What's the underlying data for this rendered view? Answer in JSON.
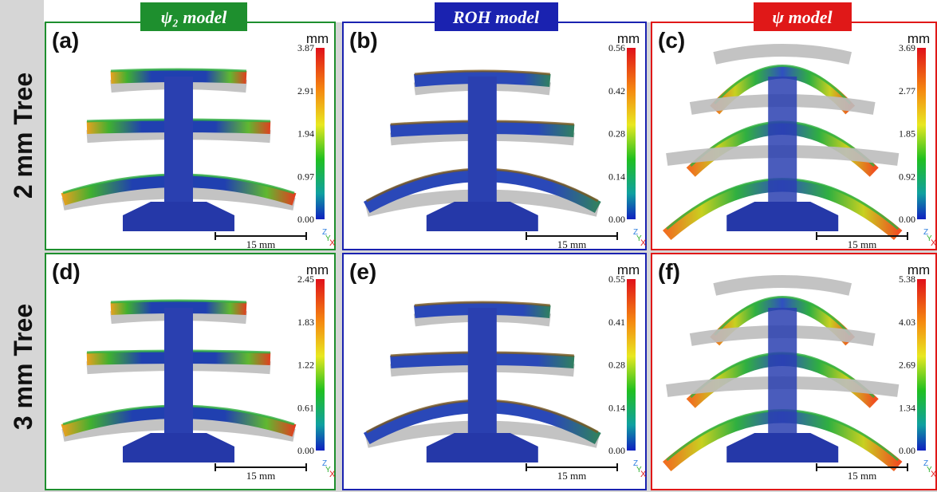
{
  "columns": [
    {
      "title": "ψ₂ model"
    },
    {
      "title": "ROH model"
    },
    {
      "title": "ψ model"
    }
  ],
  "rows": [
    {
      "label": "2 mm Tree"
    },
    {
      "label": "3 mm Tree"
    }
  ],
  "panels": [
    {
      "label": "(a)",
      "unit": "mm",
      "ticks": [
        "3.87",
        "2.91",
        "1.94",
        "0.97",
        "0.00"
      ],
      "scale_bar": "15 mm",
      "axes": [
        "Z",
        "Y",
        "X"
      ]
    },
    {
      "label": "(b)",
      "unit": "mm",
      "ticks": [
        "0.56",
        "0.42",
        "0.28",
        "0.14",
        "0.00"
      ],
      "scale_bar": "15 mm",
      "axes": [
        "Z",
        "Y",
        "X"
      ]
    },
    {
      "label": "(c)",
      "unit": "mm",
      "ticks": [
        "3.69",
        "2.77",
        "1.85",
        "0.92",
        "0.00"
      ],
      "scale_bar": "15 mm",
      "axes": [
        "Z",
        "Y",
        "X"
      ]
    },
    {
      "label": "(d)",
      "unit": "mm",
      "ticks": [
        "2.45",
        "1.83",
        "1.22",
        "0.61",
        "0.00"
      ],
      "scale_bar": "15 mm",
      "axes": [
        "Z",
        "Y",
        "X"
      ]
    },
    {
      "label": "(e)",
      "unit": "mm",
      "ticks": [
        "0.55",
        "0.41",
        "0.28",
        "0.14",
        "0.00"
      ],
      "scale_bar": "15 mm",
      "axes": [
        "Z",
        "Y",
        "X"
      ]
    },
    {
      "label": "(f)",
      "unit": "mm",
      "ticks": [
        "5.38",
        "4.03",
        "2.69",
        "1.34",
        "0.00"
      ],
      "scale_bar": "15 mm",
      "axes": [
        "Z",
        "Y",
        "X"
      ]
    }
  ]
}
